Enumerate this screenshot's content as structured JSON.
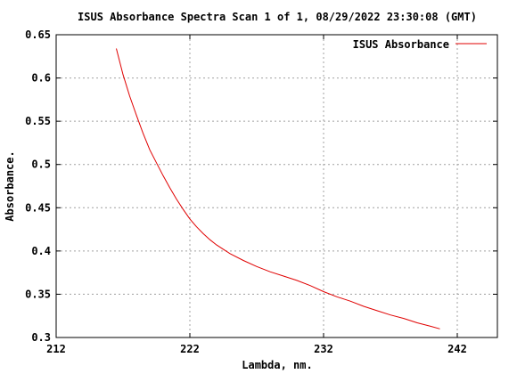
{
  "chart_data": {
    "type": "line",
    "title": "ISUS Absorbance Spectra Scan 1 of 1, 08/29/2022 23:30:08 (GMT)",
    "xlabel": "Lambda, nm.",
    "ylabel": "Absorbance.",
    "xlim": [
      212,
      245
    ],
    "ylim": [
      0.3,
      0.65
    ],
    "xticks": [
      212,
      222,
      232,
      242
    ],
    "xtick_labels": [
      "212",
      "222",
      "232",
      "242"
    ],
    "yticks": [
      0.3,
      0.35,
      0.4,
      0.45,
      0.5,
      0.55,
      0.6,
      0.65
    ],
    "ytick_labels": [
      "0.3",
      "0.35",
      "0.4",
      "0.45",
      "0.5",
      "0.55",
      "0.6",
      "0.65"
    ],
    "grid": true,
    "legend_position": "top-right",
    "series": [
      {
        "name": "ISUS Absorbance",
        "color": "#e00000",
        "x": [
          216.5,
          217.0,
          217.5,
          218.0,
          218.5,
          219.0,
          219.5,
          220.0,
          220.5,
          221.0,
          221.5,
          222.0,
          222.5,
          223.0,
          223.5,
          224.0,
          225.0,
          226.0,
          227.0,
          228.0,
          229.0,
          230.0,
          231.0,
          232.0,
          233.0,
          234.0,
          235.0,
          236.0,
          237.0,
          238.0,
          239.0,
          240.0,
          240.7
        ],
        "y": [
          0.634,
          0.604,
          0.579,
          0.557,
          0.536,
          0.517,
          0.502,
          0.487,
          0.473,
          0.46,
          0.448,
          0.437,
          0.428,
          0.42,
          0.413,
          0.407,
          0.397,
          0.389,
          0.382,
          0.376,
          0.371,
          0.366,
          0.36,
          0.353,
          0.347,
          0.342,
          0.336,
          0.331,
          0.326,
          0.322,
          0.317,
          0.313,
          0.31
        ]
      }
    ]
  }
}
